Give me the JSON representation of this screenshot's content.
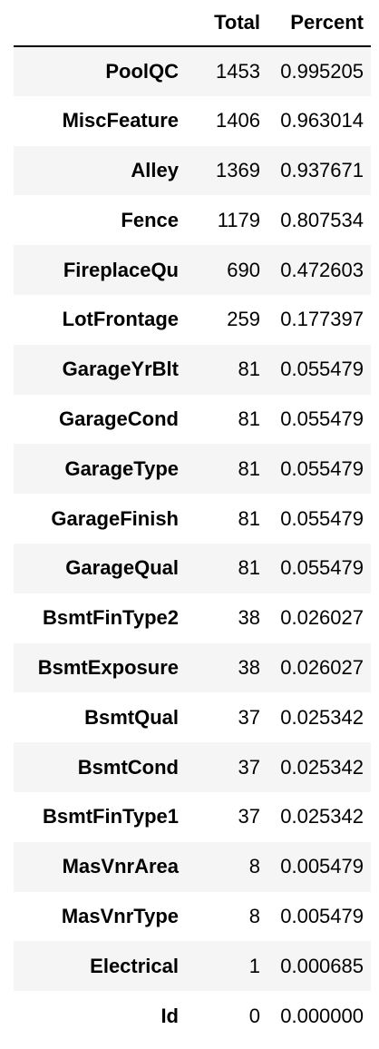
{
  "table": {
    "columns": [
      "",
      "Total",
      "Percent"
    ],
    "rows": [
      {
        "name": "PoolQC",
        "total": "1453",
        "percent": "0.995205"
      },
      {
        "name": "MiscFeature",
        "total": "1406",
        "percent": "0.963014"
      },
      {
        "name": "Alley",
        "total": "1369",
        "percent": "0.937671"
      },
      {
        "name": "Fence",
        "total": "1179",
        "percent": "0.807534"
      },
      {
        "name": "FireplaceQu",
        "total": "690",
        "percent": "0.472603"
      },
      {
        "name": "LotFrontage",
        "total": "259",
        "percent": "0.177397"
      },
      {
        "name": "GarageYrBlt",
        "total": "81",
        "percent": "0.055479"
      },
      {
        "name": "GarageCond",
        "total": "81",
        "percent": "0.055479"
      },
      {
        "name": "GarageType",
        "total": "81",
        "percent": "0.055479"
      },
      {
        "name": "GarageFinish",
        "total": "81",
        "percent": "0.055479"
      },
      {
        "name": "GarageQual",
        "total": "81",
        "percent": "0.055479"
      },
      {
        "name": "BsmtFinType2",
        "total": "38",
        "percent": "0.026027"
      },
      {
        "name": "BsmtExposure",
        "total": "38",
        "percent": "0.026027"
      },
      {
        "name": "BsmtQual",
        "total": "37",
        "percent": "0.025342"
      },
      {
        "name": "BsmtCond",
        "total": "37",
        "percent": "0.025342"
      },
      {
        "name": "BsmtFinType1",
        "total": "37",
        "percent": "0.025342"
      },
      {
        "name": "MasVnrArea",
        "total": "8",
        "percent": "0.005479"
      },
      {
        "name": "MasVnrType",
        "total": "8",
        "percent": "0.005479"
      },
      {
        "name": "Electrical",
        "total": "1",
        "percent": "0.000685"
      },
      {
        "name": "Id",
        "total": "0",
        "percent": "0.000000"
      }
    ]
  },
  "colors": {
    "stripe": "#f5f5f5",
    "background": "#ffffff",
    "text": "#000000"
  }
}
